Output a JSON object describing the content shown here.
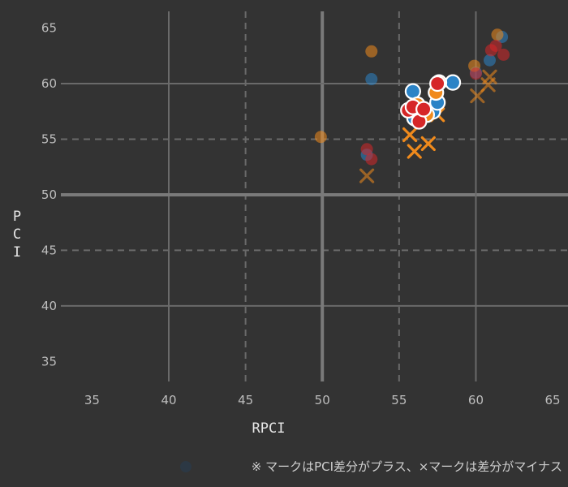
{
  "chart_data": {
    "type": "scatter",
    "xlabel": "RPCI",
    "ylabel": "PCI",
    "xlim": [
      33.5,
      66
    ],
    "ylim": [
      33.2,
      66.5
    ],
    "xticks": [
      35,
      40,
      45,
      50,
      55,
      60,
      65
    ],
    "yticks": [
      35,
      40,
      45,
      50,
      55,
      60,
      65
    ],
    "major_lines": [
      40,
      50,
      60
    ],
    "minor_dashed_lines": [
      45,
      55
    ],
    "emphasis_line": 50,
    "grid": true,
    "footnote": "※ マークはPCI差分がプラス、×マークは差分がマイナス",
    "colors": {
      "background": "#333333",
      "blue": "#2b83c6",
      "orange": "#f08a1c",
      "red": "#d62728",
      "grid": "#6a6a6a",
      "tick_text": "#bdbdbd"
    },
    "series": [
      {
        "color": "blue",
        "points": [
          {
            "x": 53.2,
            "y": 60.4,
            "marker": "circle",
            "faded": true
          },
          {
            "x": 52.9,
            "y": 53.6,
            "marker": "circle",
            "faded": true
          },
          {
            "x": 55.9,
            "y": 59.3,
            "marker": "circle",
            "faded": false
          },
          {
            "x": 56.0,
            "y": 56.9,
            "marker": "circle",
            "faded": false
          },
          {
            "x": 56.4,
            "y": 57.4,
            "marker": "circle",
            "faded": false
          },
          {
            "x": 57.2,
            "y": 57.5,
            "marker": "circle",
            "faded": false
          },
          {
            "x": 57.5,
            "y": 58.3,
            "marker": "circle",
            "faded": false
          },
          {
            "x": 58.5,
            "y": 60.1,
            "marker": "circle",
            "faded": false
          },
          {
            "x": 60.0,
            "y": 61.0,
            "marker": "circle",
            "faded": true
          },
          {
            "x": 60.9,
            "y": 62.1,
            "marker": "circle",
            "faded": true
          },
          {
            "x": 61.7,
            "y": 64.2,
            "marker": "circle",
            "faded": true
          }
        ]
      },
      {
        "color": "orange",
        "points": [
          {
            "x": 53.2,
            "y": 62.9,
            "marker": "circle",
            "faded": true
          },
          {
            "x": 49.9,
            "y": 55.2,
            "marker": "circle",
            "faded": true
          },
          {
            "x": 56.2,
            "y": 58.1,
            "marker": "circle",
            "faded": false
          },
          {
            "x": 56.8,
            "y": 57.2,
            "marker": "circle",
            "faded": false
          },
          {
            "x": 57.4,
            "y": 59.2,
            "marker": "circle",
            "faded": false
          },
          {
            "x": 57.6,
            "y": 60.1,
            "marker": "circle",
            "faded": false
          },
          {
            "x": 59.9,
            "y": 61.6,
            "marker": "circle",
            "faded": true
          },
          {
            "x": 61.4,
            "y": 64.4,
            "marker": "circle",
            "faded": true
          },
          {
            "x": 52.9,
            "y": 51.7,
            "marker": "cross",
            "faded": true
          },
          {
            "x": 55.7,
            "y": 55.4,
            "marker": "cross",
            "faded": false
          },
          {
            "x": 56.0,
            "y": 53.9,
            "marker": "cross",
            "faded": false
          },
          {
            "x": 56.9,
            "y": 54.6,
            "marker": "cross",
            "faded": false
          },
          {
            "x": 57.5,
            "y": 57.2,
            "marker": "cross",
            "faded": false
          },
          {
            "x": 60.1,
            "y": 58.9,
            "marker": "cross",
            "faded": true
          },
          {
            "x": 60.8,
            "y": 59.9,
            "marker": "cross",
            "faded": true
          },
          {
            "x": 60.9,
            "y": 60.6,
            "marker": "cross",
            "faded": true
          }
        ]
      },
      {
        "color": "red",
        "points": [
          {
            "x": 52.9,
            "y": 54.1,
            "marker": "circle",
            "faded": true
          },
          {
            "x": 53.2,
            "y": 53.2,
            "marker": "circle",
            "faded": true
          },
          {
            "x": 55.6,
            "y": 57.6,
            "marker": "circle",
            "faded": false
          },
          {
            "x": 55.9,
            "y": 57.9,
            "marker": "circle",
            "faded": false
          },
          {
            "x": 56.3,
            "y": 56.6,
            "marker": "circle",
            "faded": false
          },
          {
            "x": 56.6,
            "y": 57.7,
            "marker": "circle",
            "faded": false
          },
          {
            "x": 57.5,
            "y": 60.0,
            "marker": "circle",
            "faded": false
          },
          {
            "x": 60.0,
            "y": 60.9,
            "marker": "circle",
            "faded": true
          },
          {
            "x": 61.0,
            "y": 63.0,
            "marker": "circle",
            "faded": true
          },
          {
            "x": 61.3,
            "y": 63.4,
            "marker": "circle",
            "faded": true
          },
          {
            "x": 61.8,
            "y": 62.6,
            "marker": "circle",
            "faded": true
          }
        ]
      }
    ]
  }
}
